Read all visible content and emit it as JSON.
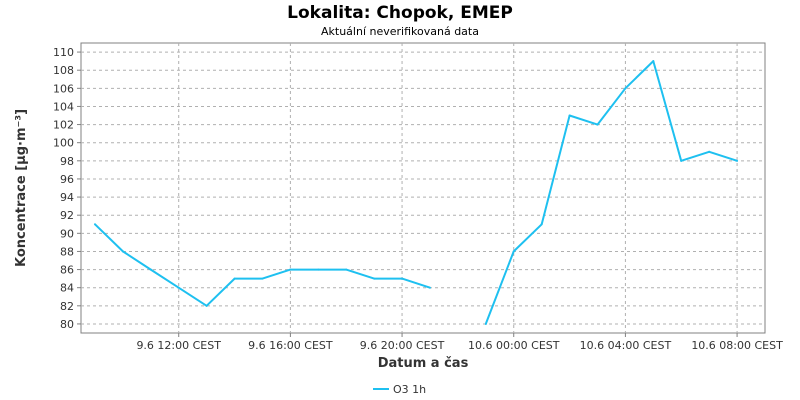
{
  "chart_data": {
    "type": "line",
    "title": "Lokalita: Chopok, EMEP",
    "subtitle": "Aktuální neverifikovaná data",
    "xlabel": "Datum a čas",
    "ylabel": "Koncentrace [µg·m⁻³]",
    "ylim": [
      79,
      111
    ],
    "yticks": [
      80,
      82,
      84,
      86,
      88,
      90,
      92,
      94,
      96,
      98,
      100,
      102,
      104,
      106,
      108,
      110
    ],
    "xlim": [
      "2024-06-09 08:30",
      "2024-06-10 09:00"
    ],
    "xticks": [
      {
        "label": "9.6 12:00 CEST",
        "x": "2024-06-09 12:00"
      },
      {
        "label": "9.6 16:00 CEST",
        "x": "2024-06-09 16:00"
      },
      {
        "label": "9.6 20:00 CEST",
        "x": "2024-06-09 20:00"
      },
      {
        "label": "10.6 00:00 CEST",
        "x": "2024-06-10 00:00"
      },
      {
        "label": "10.6 04:00 CEST",
        "x": "2024-06-10 04:00"
      },
      {
        "label": "10.6 08:00 CEST",
        "x": "2024-06-10 08:00"
      }
    ],
    "grid": true,
    "legend_position": "bottom",
    "series": [
      {
        "name": "O3 1h",
        "color": "#1ec0f0",
        "points": [
          {
            "x": "2024-06-09 09:00",
            "y": 91
          },
          {
            "x": "2024-06-09 10:00",
            "y": 88
          },
          {
            "x": "2024-06-09 11:00",
            "y": 86
          },
          {
            "x": "2024-06-09 12:00",
            "y": 84
          },
          {
            "x": "2024-06-09 13:00",
            "y": 82
          },
          {
            "x": "2024-06-09 14:00",
            "y": 85
          },
          {
            "x": "2024-06-09 15:00",
            "y": 85
          },
          {
            "x": "2024-06-09 16:00",
            "y": 86
          },
          {
            "x": "2024-06-09 17:00",
            "y": 86
          },
          {
            "x": "2024-06-09 18:00",
            "y": 86
          },
          {
            "x": "2024-06-09 19:00",
            "y": 85
          },
          {
            "x": "2024-06-09 20:00",
            "y": 85
          },
          {
            "x": "2024-06-09 21:00",
            "y": 84
          },
          {
            "x": "2024-06-09 22:00",
            "y": null
          },
          {
            "x": "2024-06-09 23:00",
            "y": 80
          },
          {
            "x": "2024-06-10 00:00",
            "y": 88
          },
          {
            "x": "2024-06-10 01:00",
            "y": 91
          },
          {
            "x": "2024-06-10 02:00",
            "y": 103
          },
          {
            "x": "2024-06-10 03:00",
            "y": 102
          },
          {
            "x": "2024-06-10 04:00",
            "y": 106
          },
          {
            "x": "2024-06-10 05:00",
            "y": 109
          },
          {
            "x": "2024-06-10 06:00",
            "y": 98
          },
          {
            "x": "2024-06-10 07:00",
            "y": 99
          },
          {
            "x": "2024-06-10 08:00",
            "y": 98
          }
        ]
      }
    ]
  }
}
